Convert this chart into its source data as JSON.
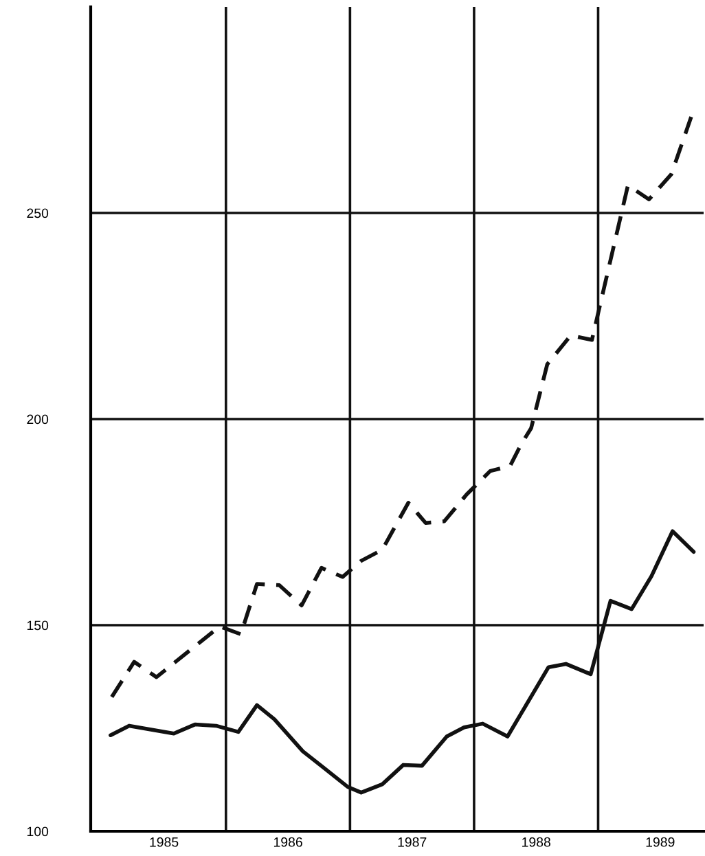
{
  "chart_data": {
    "type": "line",
    "series": [
      {
        "color": "#111111",
        "line_style": "solid",
        "x": [
          1985.07,
          1985.22,
          1985.58,
          1985.75,
          1985.92,
          1986.1,
          1986.25,
          1986.39,
          1986.62,
          1986.78,
          1986.98,
          1987.09,
          1987.26,
          1987.43,
          1987.58,
          1987.78,
          1987.92,
          1988.07,
          1988.27,
          1988.6,
          1988.74,
          1988.94,
          1989.1,
          1989.27,
          1989.43,
          1989.6,
          1989.77
        ],
        "values": [
          123.3,
          125.6,
          123.7,
          125.9,
          125.6,
          124.1,
          130.6,
          127.2,
          119.4,
          115.6,
          110.8,
          109.4,
          111.4,
          116.1,
          115.9,
          123,
          125.2,
          126.1,
          123,
          139.8,
          140.6,
          138.1,
          155.9,
          153.9,
          161.9,
          172.8,
          167.8
        ]
      },
      {
        "color": "#111111",
        "line_style": "dashed",
        "x": [
          1985.08,
          1985.26,
          1985.44,
          1985.95,
          1986.12,
          1986.25,
          1986.43,
          1986.61,
          1986.77,
          1986.94,
          1987.09,
          1987.26,
          1987.47,
          1987.61,
          1987.76,
          1987.94,
          1988.13,
          1988.29,
          1988.38,
          1988.46,
          1988.59,
          1988.78,
          1988.95,
          1989.24,
          1989.41,
          1989.59,
          1989.75
        ],
        "values": [
          132.6,
          141.1,
          137.4,
          149.7,
          147.8,
          160,
          159.7,
          154.8,
          163.9,
          161.7,
          165.6,
          168.3,
          179.7,
          174.8,
          175.2,
          181.7,
          187.4,
          188.6,
          193.9,
          197.8,
          213.3,
          220.3,
          219.2,
          256.7,
          253.3,
          259.4,
          273.3
        ]
      }
    ],
    "xlim": [
      1984.91,
      1989.85
    ],
    "xticks": [
      {
        "value": 1985.5,
        "label": "1985"
      },
      {
        "value": 1986.5,
        "label": "1986"
      },
      {
        "value": 1987.5,
        "label": "1987"
      },
      {
        "value": 1988.5,
        "label": "1988"
      },
      {
        "value": 1989.5,
        "label": "1989"
      }
    ],
    "ylim": [
      100,
      300
    ],
    "yticks": [
      100,
      150,
      200,
      250
    ],
    "grid": "y",
    "ref_lines": [
      {
        "axis": "x",
        "value": 1986,
        "color": "#111111"
      },
      {
        "axis": "x",
        "value": 1987,
        "color": "#111111"
      },
      {
        "axis": "x",
        "value": 1988,
        "color": "#111111"
      },
      {
        "axis": "x",
        "value": 1989,
        "color": "#111111"
      }
    ],
    "marker": "none",
    "legend": false
  }
}
